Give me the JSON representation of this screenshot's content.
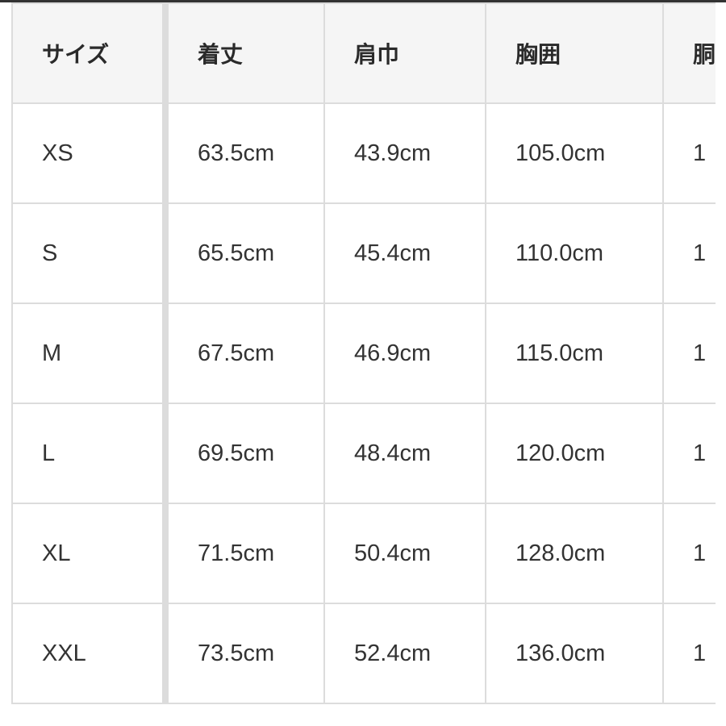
{
  "table": {
    "headers": [
      "サイズ",
      "着丈",
      "肩巾",
      "胸囲",
      "胴"
    ],
    "rows": [
      [
        "XS",
        "63.5cm",
        "43.9cm",
        "105.0cm",
        "1"
      ],
      [
        "S",
        "65.5cm",
        "45.4cm",
        "110.0cm",
        "1"
      ],
      [
        "M",
        "67.5cm",
        "46.9cm",
        "115.0cm",
        "1"
      ],
      [
        "L",
        "69.5cm",
        "48.4cm",
        "120.0cm",
        "1"
      ],
      [
        "XL",
        "71.5cm",
        "50.4cm",
        "128.0cm",
        "1"
      ],
      [
        "XXL",
        "73.5cm",
        "52.4cm",
        "136.0cm",
        "1"
      ]
    ]
  }
}
